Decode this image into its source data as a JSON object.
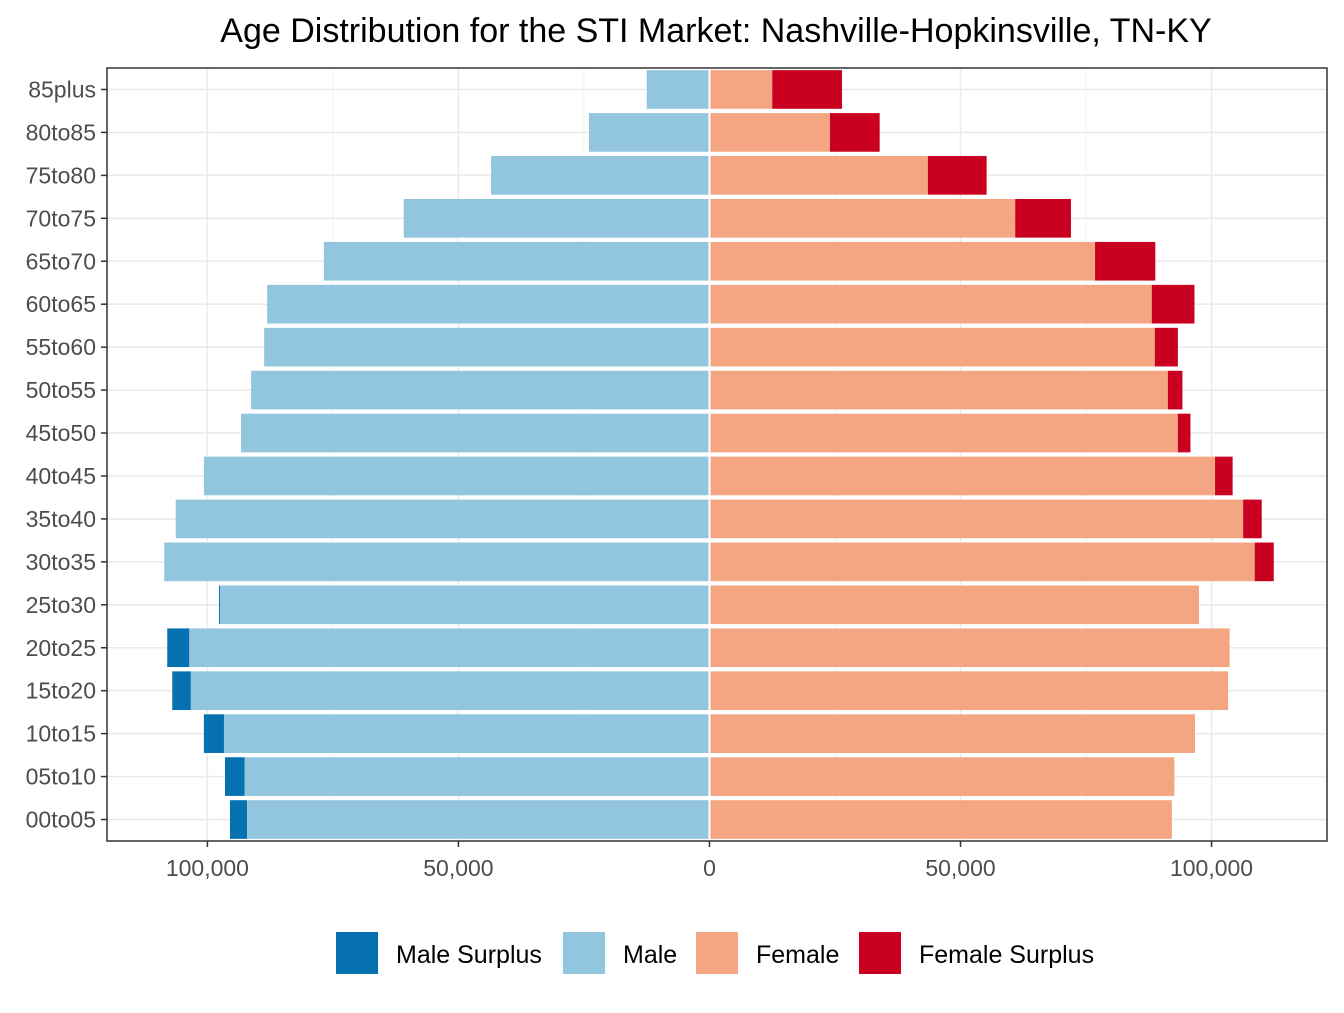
{
  "chart_data": {
    "type": "bar",
    "orientation": "horizontal",
    "title": "Age Distribution for the STI Market: Nashville-Hopkinsville, TN-KY",
    "xlabel": "",
    "ylabel": "",
    "xlim": [
      -120000,
      123000
    ],
    "x_ticks": [
      -100000,
      -50000,
      0,
      50000,
      100000
    ],
    "x_tick_labels": [
      "100,000",
      "50,000",
      "0",
      "50,000",
      "100,000"
    ],
    "grid": true,
    "legend_position": "bottom",
    "categories": [
      "00to05",
      "05to10",
      "10to15",
      "15to20",
      "20to25",
      "25to30",
      "30to35",
      "35to40",
      "40to45",
      "45to50",
      "50to55",
      "55to60",
      "60to65",
      "65to70",
      "70to75",
      "75to80",
      "80to85",
      "85plus"
    ],
    "series": [
      {
        "name": "Male Surplus",
        "color": "#0571b0",
        "side": "male",
        "stack": "outer",
        "values": [
          3400,
          3900,
          4000,
          3700,
          4400,
          200,
          0,
          0,
          0,
          0,
          0,
          0,
          0,
          0,
          0,
          0,
          0,
          0
        ]
      },
      {
        "name": "Male",
        "color": "#92c5de",
        "side": "male",
        "stack": "inner",
        "values": [
          92100,
          92600,
          96700,
          103300,
          103600,
          97500,
          108600,
          106300,
          100700,
          93300,
          91300,
          88700,
          88100,
          76800,
          60900,
          43500,
          24000,
          12500
        ]
      },
      {
        "name": "Female",
        "color": "#f4a582",
        "side": "female",
        "stack": "inner",
        "values": [
          92100,
          92600,
          96700,
          103300,
          103600,
          97500,
          108600,
          106300,
          100700,
          93300,
          91300,
          88700,
          88100,
          76800,
          60900,
          43500,
          24000,
          12500
        ]
      },
      {
        "name": "Female Surplus",
        "color": "#ca0020",
        "side": "female",
        "stack": "outer",
        "values": [
          0,
          0,
          0,
          0,
          0,
          0,
          3800,
          3700,
          3500,
          2500,
          2900,
          4600,
          8500,
          12000,
          11100,
          11700,
          9900,
          13900
        ]
      }
    ]
  }
}
